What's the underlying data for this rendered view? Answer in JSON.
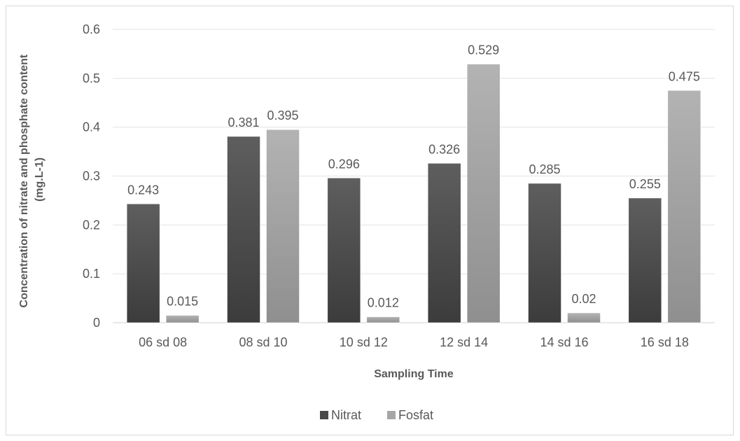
{
  "chart_data": {
    "type": "bar",
    "categories": [
      "06 sd 08",
      "08 sd 10",
      "10 sd 12",
      "12 sd 14",
      "14 sd 16",
      "16 sd 18"
    ],
    "series": [
      {
        "name": "Nitrat",
        "values": [
          0.243,
          0.381,
          0.296,
          0.326,
          0.285,
          0.255
        ],
        "color": "#4a4a4a"
      },
      {
        "name": "Fosfat",
        "values": [
          0.015,
          0.395,
          0.012,
          0.529,
          0.02,
          0.475
        ],
        "color": "#a6a6a6"
      }
    ],
    "data_labels": [
      [
        "0.243",
        "0.381",
        "0.296",
        "0.326",
        "0.285",
        "0.255"
      ],
      [
        "0.015",
        "0.395",
        "0.012",
        "0.529",
        "0.02",
        "0.475"
      ]
    ],
    "xlabel": "Sampling Time",
    "ylabel": "Concentration of nitrate and phosphate content (mg.L-1)",
    "ylabel_lines": [
      "Concentration of nitrate and phosphate content",
      "(mg.L-1)"
    ],
    "ylim": [
      0,
      0.6
    ],
    "yticks": [
      "0",
      "0.1",
      "0.2",
      "0.3",
      "0.4",
      "0.5",
      "0.6"
    ],
    "grid": true,
    "legend_position": "bottom"
  }
}
